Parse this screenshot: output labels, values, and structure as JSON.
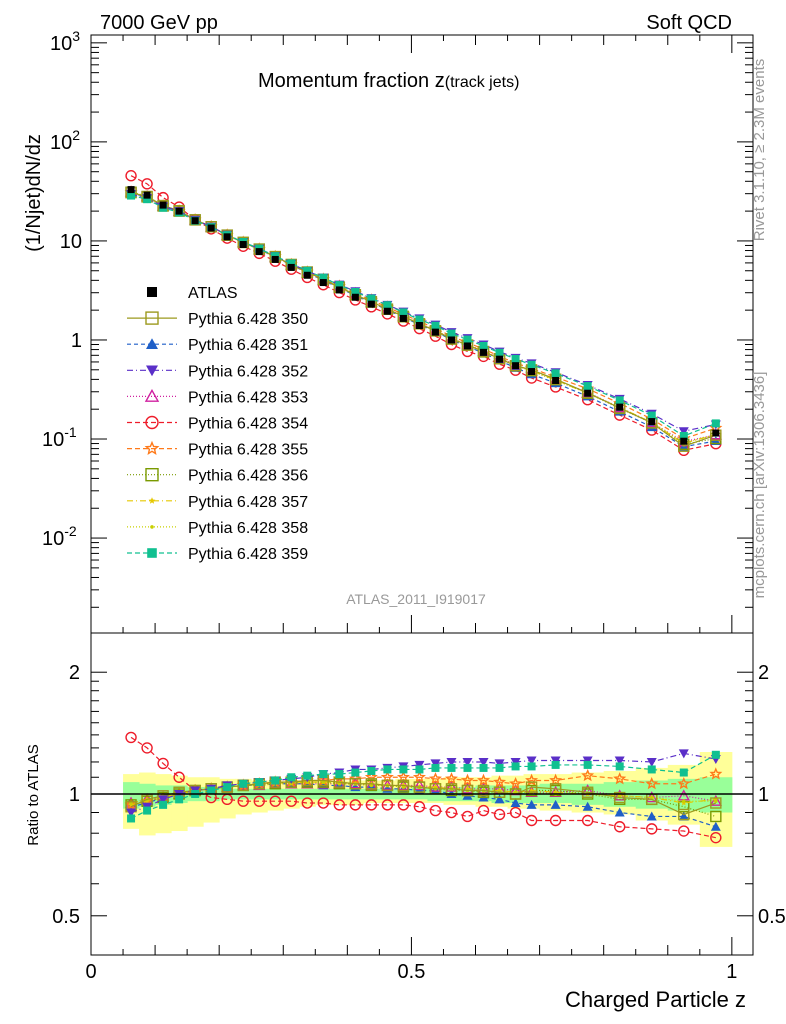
{
  "header": {
    "energy": "7000 GeV pp",
    "process": "Soft QCD"
  },
  "side": {
    "rivet": "Rivet 3.1.10, ≥ 2.3M events",
    "site": "mcplots.cern.ch [arXiv:1306.3436]"
  },
  "analysis": "ATLAS_2011_I919017",
  "chart_data": {
    "type": "line",
    "title": "Momentum fraction z",
    "title_suffix": "(track jets)",
    "ylabel": "(1/Njet)dN/dz",
    "xlabel": "Charged Particle z",
    "ratio_ylabel": "Ratio to ATLAS",
    "xlim": [
      0,
      1.033
    ],
    "ylim": [
      0.0011,
      1200
    ],
    "yscale": "log",
    "ratio_ylim": [
      0.4,
      2.5
    ],
    "ratio_yscale": "log",
    "legend_placement": "left",
    "x_ticks": [
      {
        "v": 0,
        "label": "0"
      },
      {
        "v": 0.5,
        "label": "0.5"
      },
      {
        "v": 1,
        "label": "1"
      }
    ],
    "y_ticks": [
      {
        "v": 1000,
        "base": "10",
        "exp": "3"
      },
      {
        "v": 100,
        "base": "10",
        "exp": "2"
      },
      {
        "v": 10,
        "base": "10",
        "exp": ""
      },
      {
        "v": 1,
        "base": "1",
        "exp": ""
      },
      {
        "v": 0.1,
        "base": "10",
        "exp": "-1"
      },
      {
        "v": 0.01,
        "base": "10",
        "exp": "-2"
      }
    ],
    "ratio_ticks": [
      {
        "v": 2,
        "label": "2"
      },
      {
        "v": 1,
        "label": "1"
      },
      {
        "v": 0.5,
        "label": "0.5"
      }
    ],
    "x": [
      0.0625,
      0.0875,
      0.1125,
      0.1375,
      0.1625,
      0.1875,
      0.2125,
      0.2375,
      0.2625,
      0.2875,
      0.3125,
      0.3375,
      0.3625,
      0.3875,
      0.4125,
      0.4375,
      0.4625,
      0.4875,
      0.5125,
      0.5375,
      0.5625,
      0.5875,
      0.6125,
      0.6375,
      0.6625,
      0.6875,
      0.725,
      0.775,
      0.825,
      0.875,
      0.925,
      0.975
    ],
    "data": {
      "name": "ATLAS",
      "values": [
        33,
        29,
        23,
        20,
        16,
        13.5,
        11,
        9.2,
        7.8,
        6.5,
        5.4,
        4.5,
        3.8,
        3.2,
        2.7,
        2.3,
        1.95,
        1.65,
        1.4,
        1.2,
        1.0,
        0.87,
        0.75,
        0.64,
        0.55,
        0.48,
        0.39,
        0.29,
        0.21,
        0.15,
        0.095,
        0.115
      ]
    },
    "band_total": {
      "low": [
        0.82,
        0.79,
        0.8,
        0.81,
        0.83,
        0.85,
        0.87,
        0.89,
        0.9,
        0.91,
        0.92,
        0.93,
        0.94,
        0.94,
        0.94,
        0.95,
        0.95,
        0.95,
        0.95,
        0.95,
        0.94,
        0.94,
        0.93,
        0.93,
        0.92,
        0.92,
        0.91,
        0.9,
        0.89,
        0.86,
        0.84,
        0.74
      ],
      "high": [
        1.12,
        1.13,
        1.12,
        1.11,
        1.1,
        1.1,
        1.09,
        1.09,
        1.08,
        1.08,
        1.08,
        1.08,
        1.08,
        1.08,
        1.08,
        1.08,
        1.08,
        1.09,
        1.09,
        1.09,
        1.1,
        1.1,
        1.1,
        1.11,
        1.11,
        1.12,
        1.12,
        1.13,
        1.14,
        1.16,
        1.18,
        1.27
      ]
    },
    "band_stat": {
      "low": [
        0.92,
        0.93,
        0.94,
        0.95,
        0.96,
        0.96,
        0.97,
        0.97,
        0.97,
        0.97,
        0.97,
        0.97,
        0.97,
        0.97,
        0.97,
        0.97,
        0.97,
        0.97,
        0.97,
        0.96,
        0.96,
        0.96,
        0.96,
        0.95,
        0.95,
        0.95,
        0.95,
        0.94,
        0.93,
        0.92,
        0.91,
        0.9
      ],
      "high": [
        1.07,
        1.06,
        1.05,
        1.05,
        1.04,
        1.04,
        1.03,
        1.03,
        1.03,
        1.03,
        1.03,
        1.03,
        1.03,
        1.03,
        1.03,
        1.03,
        1.03,
        1.03,
        1.04,
        1.04,
        1.04,
        1.04,
        1.05,
        1.05,
        1.05,
        1.05,
        1.06,
        1.06,
        1.07,
        1.08,
        1.09,
        1.1
      ]
    },
    "series": [
      {
        "name": "Pythia 6.428 350",
        "color": "#9c9a1e",
        "dash": "",
        "marker": "square-open",
        "ratio": [
          0.93,
          0.97,
          0.99,
          1.01,
          1.02,
          1.03,
          1.04,
          1.05,
          1.06,
          1.07,
          1.07,
          1.08,
          1.08,
          1.07,
          1.06,
          1.06,
          1.05,
          1.05,
          1.04,
          1.03,
          1.03,
          1.02,
          1.02,
          1.01,
          1.0,
          1.04,
          1.03,
          1.01,
          0.98,
          0.97,
          0.89,
          0.95
        ]
      },
      {
        "name": "Pythia 6.428 351",
        "color": "#1f5fc8",
        "dash": "4,3",
        "marker": "triangle-up",
        "ratio": [
          0.93,
          0.95,
          0.98,
          1.0,
          1.02,
          1.03,
          1.04,
          1.05,
          1.05,
          1.06,
          1.06,
          1.06,
          1.05,
          1.05,
          1.04,
          1.04,
          1.03,
          1.03,
          1.02,
          1.02,
          1.0,
          0.99,
          0.98,
          0.97,
          0.95,
          0.94,
          0.94,
          0.93,
          0.9,
          0.88,
          0.88,
          0.83
        ]
      },
      {
        "name": "Pythia 6.428 352",
        "color": "#5a2fc8",
        "dash": "6,3,1,3",
        "marker": "triangle-down",
        "ratio": [
          0.9,
          0.93,
          0.97,
          1.0,
          1.02,
          1.03,
          1.05,
          1.06,
          1.07,
          1.08,
          1.09,
          1.1,
          1.12,
          1.13,
          1.15,
          1.15,
          1.16,
          1.17,
          1.18,
          1.19,
          1.2,
          1.2,
          1.2,
          1.19,
          1.2,
          1.21,
          1.21,
          1.21,
          1.21,
          1.2,
          1.26,
          1.22
        ]
      },
      {
        "name": "Pythia 6.428 353",
        "color": "#d020a0",
        "dash": "1,2",
        "marker": "triangle-open",
        "ratio": [
          0.95,
          0.97,
          0.98,
          1.0,
          1.02,
          1.03,
          1.04,
          1.05,
          1.05,
          1.06,
          1.06,
          1.06,
          1.06,
          1.06,
          1.06,
          1.05,
          1.05,
          1.05,
          1.05,
          1.04,
          1.04,
          1.03,
          1.03,
          1.03,
          1.02,
          1.01,
          1.01,
          1.02,
          0.99,
          0.98,
          0.99,
          0.96
        ]
      },
      {
        "name": "Pythia 6.428 354",
        "color": "#ee1c2a",
        "dash": "5,3",
        "marker": "circle-open",
        "ratio": [
          1.38,
          1.3,
          1.19,
          1.1,
          1.02,
          0.98,
          0.97,
          0.96,
          0.96,
          0.96,
          0.96,
          0.95,
          0.95,
          0.94,
          0.94,
          0.94,
          0.94,
          0.94,
          0.93,
          0.91,
          0.9,
          0.88,
          0.91,
          0.89,
          0.9,
          0.86,
          0.86,
          0.86,
          0.83,
          0.82,
          0.81,
          0.78
        ]
      },
      {
        "name": "Pythia 6.428 355",
        "color": "#ff7a1a",
        "dash": "5,3",
        "marker": "star-open",
        "ratio": [
          0.94,
          0.96,
          0.98,
          1.0,
          1.02,
          1.03,
          1.04,
          1.05,
          1.06,
          1.07,
          1.07,
          1.08,
          1.08,
          1.09,
          1.09,
          1.1,
          1.1,
          1.1,
          1.1,
          1.09,
          1.09,
          1.08,
          1.08,
          1.07,
          1.06,
          1.08,
          1.08,
          1.11,
          1.09,
          1.06,
          1.06,
          1.12
        ]
      },
      {
        "name": "Pythia 6.428 356",
        "color": "#7a9a00",
        "dash": "1,2",
        "marker": "square-open",
        "ratio": [
          0.94,
          0.96,
          0.98,
          1.0,
          1.02,
          1.03,
          1.04,
          1.05,
          1.06,
          1.06,
          1.07,
          1.07,
          1.07,
          1.06,
          1.06,
          1.05,
          1.05,
          1.04,
          1.04,
          1.03,
          1.02,
          1.02,
          1.01,
          1.01,
          1.0,
          1.02,
          1.02,
          1.0,
          0.97,
          0.97,
          0.93,
          0.88
        ]
      },
      {
        "name": "Pythia 6.428 357",
        "color": "#e6c800",
        "dash": "6,3,1,3",
        "marker": "star-small",
        "ratio": [
          0.94,
          0.96,
          0.98,
          1.0,
          1.02,
          1.03,
          1.04,
          1.05,
          1.06,
          1.06,
          1.07,
          1.07,
          1.07,
          1.07,
          1.06,
          1.06,
          1.05,
          1.05,
          1.04,
          1.04,
          1.03,
          1.03,
          1.02,
          1.02,
          1.01,
          1.02,
          1.01,
          1.0,
          0.99,
          0.98,
          0.95,
          0.97
        ]
      },
      {
        "name": "Pythia 6.428 358",
        "color": "#c8d000",
        "dash": "1,2",
        "marker": "dot",
        "ratio": [
          0.95,
          0.97,
          0.99,
          1.0,
          1.02,
          1.03,
          1.04,
          1.05,
          1.05,
          1.06,
          1.06,
          1.07,
          1.07,
          1.06,
          1.06,
          1.05,
          1.05,
          1.04,
          1.04,
          1.03,
          1.03,
          1.02,
          1.02,
          1.01,
          1.01,
          1.01,
          1.0,
          1.0,
          0.99,
          0.98,
          0.96,
          0.96
        ]
      },
      {
        "name": "Pythia 6.428 359",
        "color": "#10c090",
        "dash": "5,3",
        "marker": "square-filled",
        "ratio": [
          0.87,
          0.91,
          0.94,
          0.97,
          1.0,
          1.02,
          1.04,
          1.06,
          1.07,
          1.08,
          1.1,
          1.11,
          1.12,
          1.12,
          1.13,
          1.14,
          1.15,
          1.15,
          1.15,
          1.16,
          1.16,
          1.16,
          1.16,
          1.16,
          1.17,
          1.17,
          1.18,
          1.18,
          1.17,
          1.15,
          1.13,
          1.25
        ]
      }
    ]
  }
}
